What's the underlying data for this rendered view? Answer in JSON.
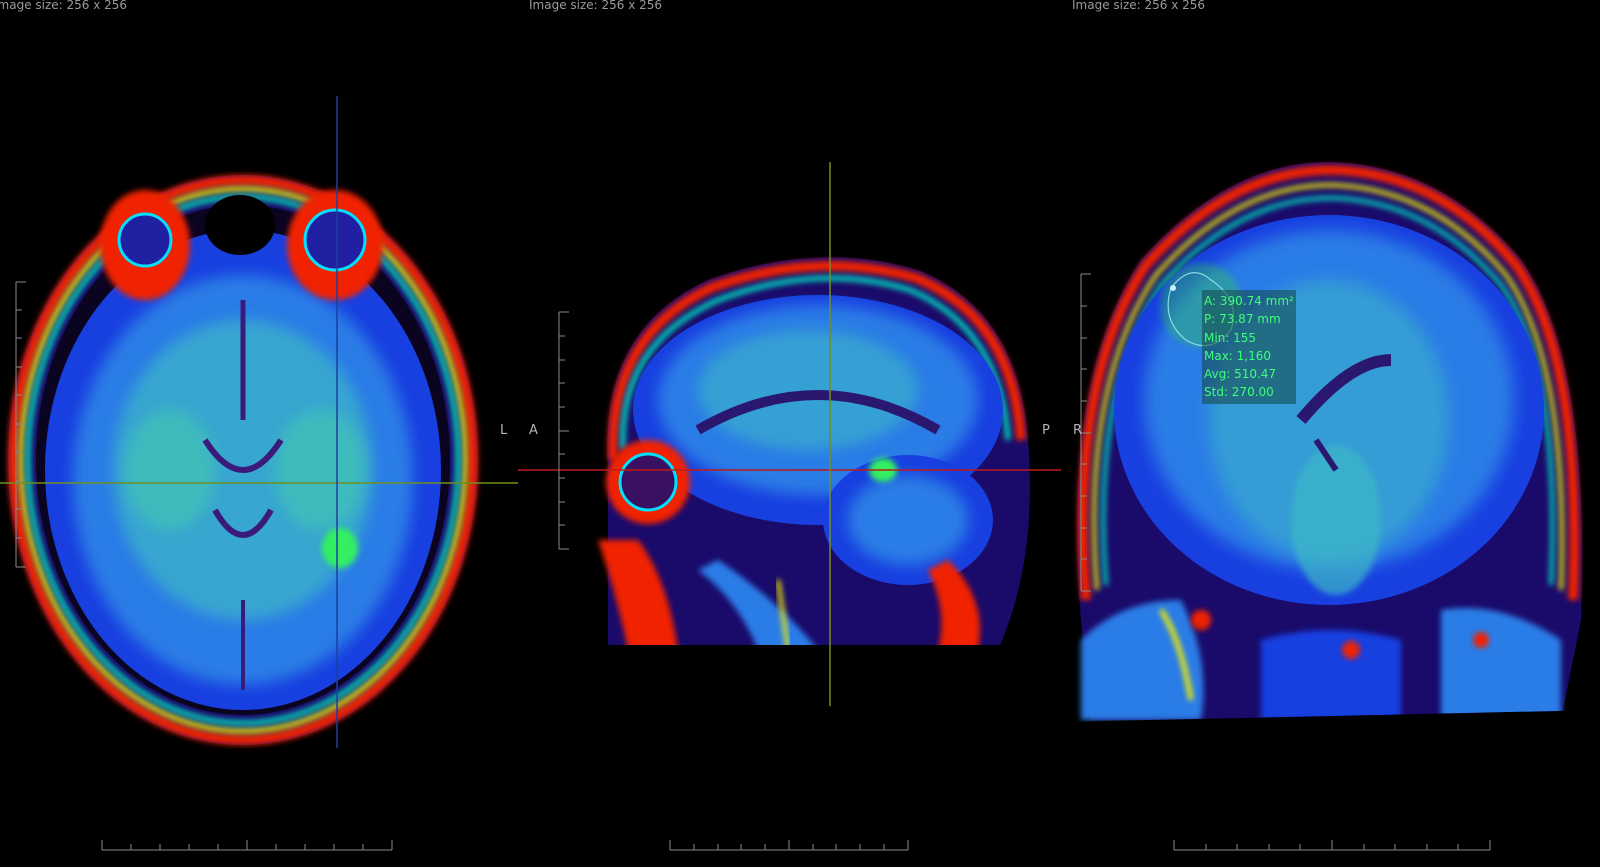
{
  "viewports": {
    "axial": {
      "info": "Image size: 256 x 256",
      "right_label": "L"
    },
    "sagittal": {
      "info": "Image size: 256 x 256",
      "left_label": "A",
      "right_label": "P"
    },
    "coronal": {
      "info": "Image size: 256 x 256",
      "left_label": "R"
    }
  },
  "roi_stats": {
    "area": "A: 390.74 mm²",
    "perimeter": "P: 73.87 mm",
    "min": "Min: 155",
    "max": "Max: 1,160",
    "avg": "Avg: 510.47",
    "std": "Std: 270.00"
  },
  "colors": {
    "stats_text": "#3dff7a",
    "crosshair_red": "#c01818",
    "crosshair_green": "#6f8f1e",
    "crosshair_blue": "#1d3f9e"
  }
}
